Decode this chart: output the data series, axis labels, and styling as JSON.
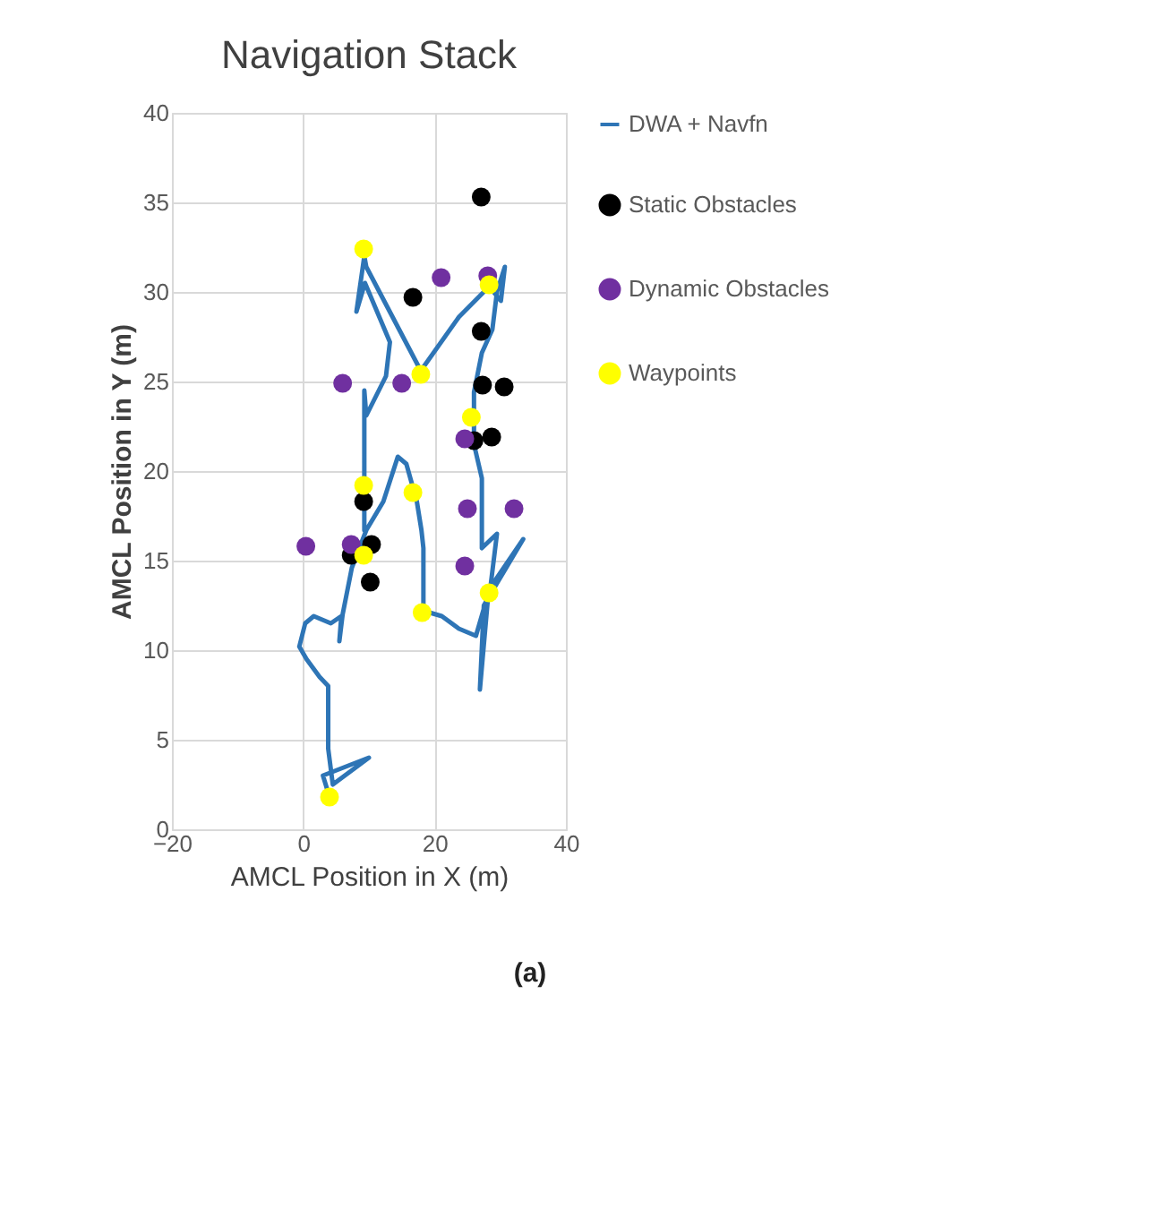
{
  "chart_data": {
    "type": "scatter",
    "title": "Navigation Stack",
    "xlabel": "AMCL Position in X (m)",
    "ylabel": "AMCL Position in Y (m)",
    "xlim": [
      -20,
      40
    ],
    "xticks": [
      -20,
      0,
      20,
      40
    ],
    "ylim": [
      0,
      40
    ],
    "yticks": [
      0,
      5,
      10,
      15,
      20,
      25,
      30,
      35,
      40
    ],
    "grid": true,
    "legend": "right",
    "marker": "circle",
    "annotations": [
      "(a)"
    ],
    "series": [
      {
        "name": "DWA + Navfn",
        "type": "line",
        "marker": "none",
        "color": "#2e75b6",
        "x": [
          4.0,
          3.0,
          10.0,
          4.5,
          3.8,
          3.8,
          2.5,
          0.5,
          -0.6,
          0.3,
          1.6,
          4.2,
          5.8,
          5.5,
          6.0,
          7.4,
          9.6,
          12.2,
          14.4,
          15.7,
          17.3,
          18.0,
          18.3,
          18.3,
          21.1,
          23.7,
          26.3,
          28.2,
          26.9,
          27.5,
          33.5,
          28.5,
          29.5,
          27.2,
          27.2,
          26.0,
          26.0,
          27.2,
          28.8,
          29.5,
          30.7,
          30.1,
          28.3,
          23.7,
          17.9,
          9.6,
          9.3,
          8.1,
          9.4,
          13.2,
          12.6,
          9.6,
          9.3,
          9.3,
          9.3
        ],
        "values": [
          1.8,
          3.0,
          4.0,
          2.5,
          4.5,
          8.0,
          8.5,
          9.5,
          10.2,
          11.5,
          11.9,
          11.5,
          11.9,
          10.5,
          12.0,
          14.6,
          16.7,
          18.3,
          20.8,
          20.4,
          18.3,
          16.7,
          15.7,
          12.2,
          11.9,
          11.2,
          10.8,
          13.2,
          7.8,
          12.5,
          16.2,
          13.5,
          16.5,
          15.7,
          19.6,
          21.5,
          24.4,
          26.6,
          27.9,
          30.0,
          31.4,
          29.5,
          30.3,
          28.6,
          25.6,
          31.4,
          32.0,
          28.9,
          30.5,
          27.2,
          25.3,
          23.1,
          24.5,
          19.3,
          16.7
        ]
      },
      {
        "name": "Static Obstacles",
        "color": "#000000",
        "x": [
          27.1,
          16.7,
          27.1,
          27.3,
          30.6,
          26.0,
          28.7,
          9.2,
          7.3,
          10.4,
          10.2
        ],
        "values": [
          35.3,
          29.7,
          27.8,
          24.8,
          24.7,
          21.7,
          21.9,
          18.3,
          15.3,
          15.9,
          13.8
        ]
      },
      {
        "name": "Dynamic Obstacles",
        "color": "#7030a0",
        "x": [
          6.0,
          15.0,
          21.0,
          28.1,
          24.6,
          0.4,
          7.3,
          25.0,
          32.1,
          24.6
        ],
        "values": [
          24.9,
          24.9,
          30.8,
          30.9,
          21.8,
          15.8,
          15.9,
          17.9,
          17.9,
          14.7
        ]
      },
      {
        "name": "Waypoints",
        "color": "#ffff00",
        "x": [
          9.2,
          17.9,
          28.3,
          25.6,
          9.2,
          16.7,
          9.2,
          18.1,
          28.3,
          4.0
        ],
        "values": [
          32.4,
          25.4,
          30.4,
          23.0,
          19.2,
          18.8,
          15.3,
          12.1,
          13.2,
          1.8
        ]
      }
    ]
  }
}
